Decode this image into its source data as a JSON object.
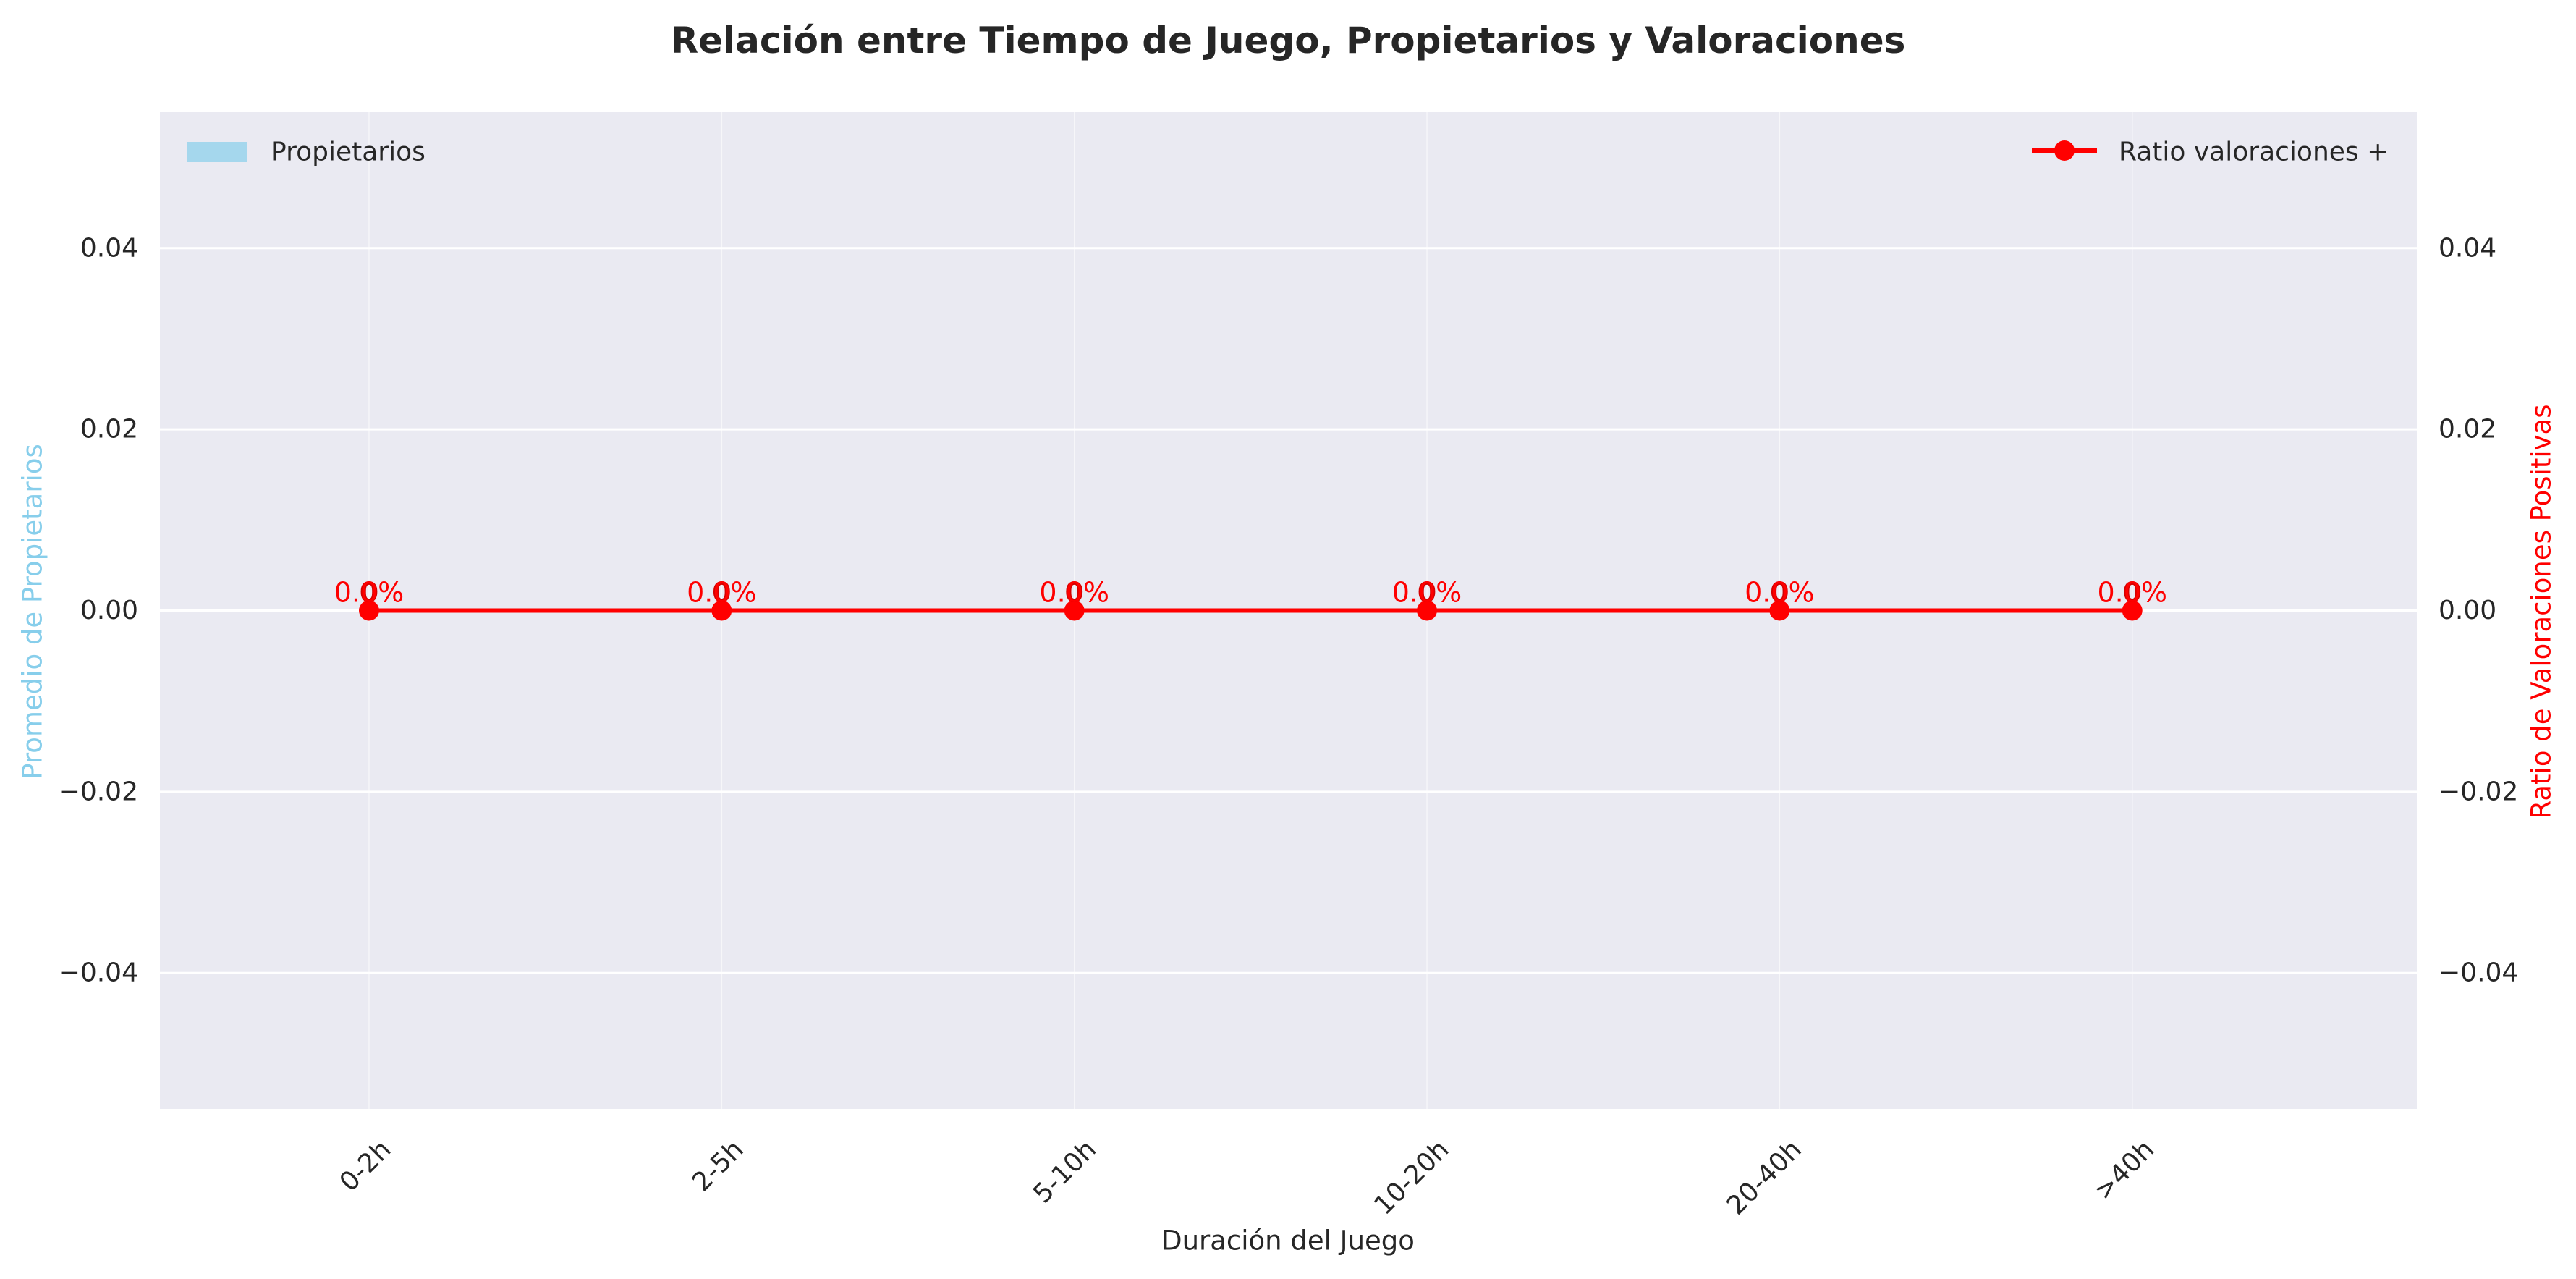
{
  "chart_data": {
    "type": "bar",
    "title": "Relación entre Tiempo de Juego, Propietarios y Valoraciones",
    "xlabel": "Duración del Juego",
    "ylabel": "Promedio de Propietarios",
    "y2label": "Ratio de Valoraciones Positivas",
    "categories": [
      "0-2h",
      "2-5h",
      "5-10h",
      "10-20h",
      "20-40h",
      ">40h"
    ],
    "ylim": [
      -0.055,
      0.055
    ],
    "y2lim": [
      -0.055,
      0.055
    ],
    "yticks": [
      -0.04,
      -0.02,
      0.0,
      0.02,
      0.04
    ],
    "ytick_labels": [
      "−0.04",
      "−0.02",
      "0.00",
      "0.02",
      "0.04"
    ],
    "y2ticks": [
      -0.04,
      -0.02,
      0.0,
      0.02,
      0.04
    ],
    "y2tick_labels": [
      "−0.04",
      "−0.02",
      "0.00",
      "0.02",
      "0.04"
    ],
    "grid": true,
    "series": [
      {
        "name": "Propietarios",
        "kind": "bar",
        "axis": "left",
        "color": "#87ceeb",
        "values": [
          0,
          0,
          0,
          0,
          0,
          0
        ]
      },
      {
        "name": "Ratio valoraciones +",
        "kind": "line",
        "axis": "right",
        "color": "#ff0000",
        "marker": "circle",
        "values": [
          0,
          0,
          0,
          0,
          0,
          0
        ]
      }
    ],
    "bar_value_labels": [
      "0",
      "0",
      "0",
      "0",
      "0",
      "0"
    ],
    "line_value_labels": [
      "0.0%",
      "0.0%",
      "0.0%",
      "0.0%",
      "0.0%",
      "0.0%"
    ],
    "legend": [
      {
        "label": "Propietarios",
        "placement": "top-left"
      },
      {
        "label": "Ratio valoraciones +",
        "placement": "top-right"
      }
    ]
  },
  "colors": {
    "plot_background": "#eaeaf2",
    "grid": "#ffffff",
    "left_axis_label": "#87ceeb",
    "right_axis_label": "#ff0000",
    "text": "#262626",
    "title": "#262626"
  }
}
